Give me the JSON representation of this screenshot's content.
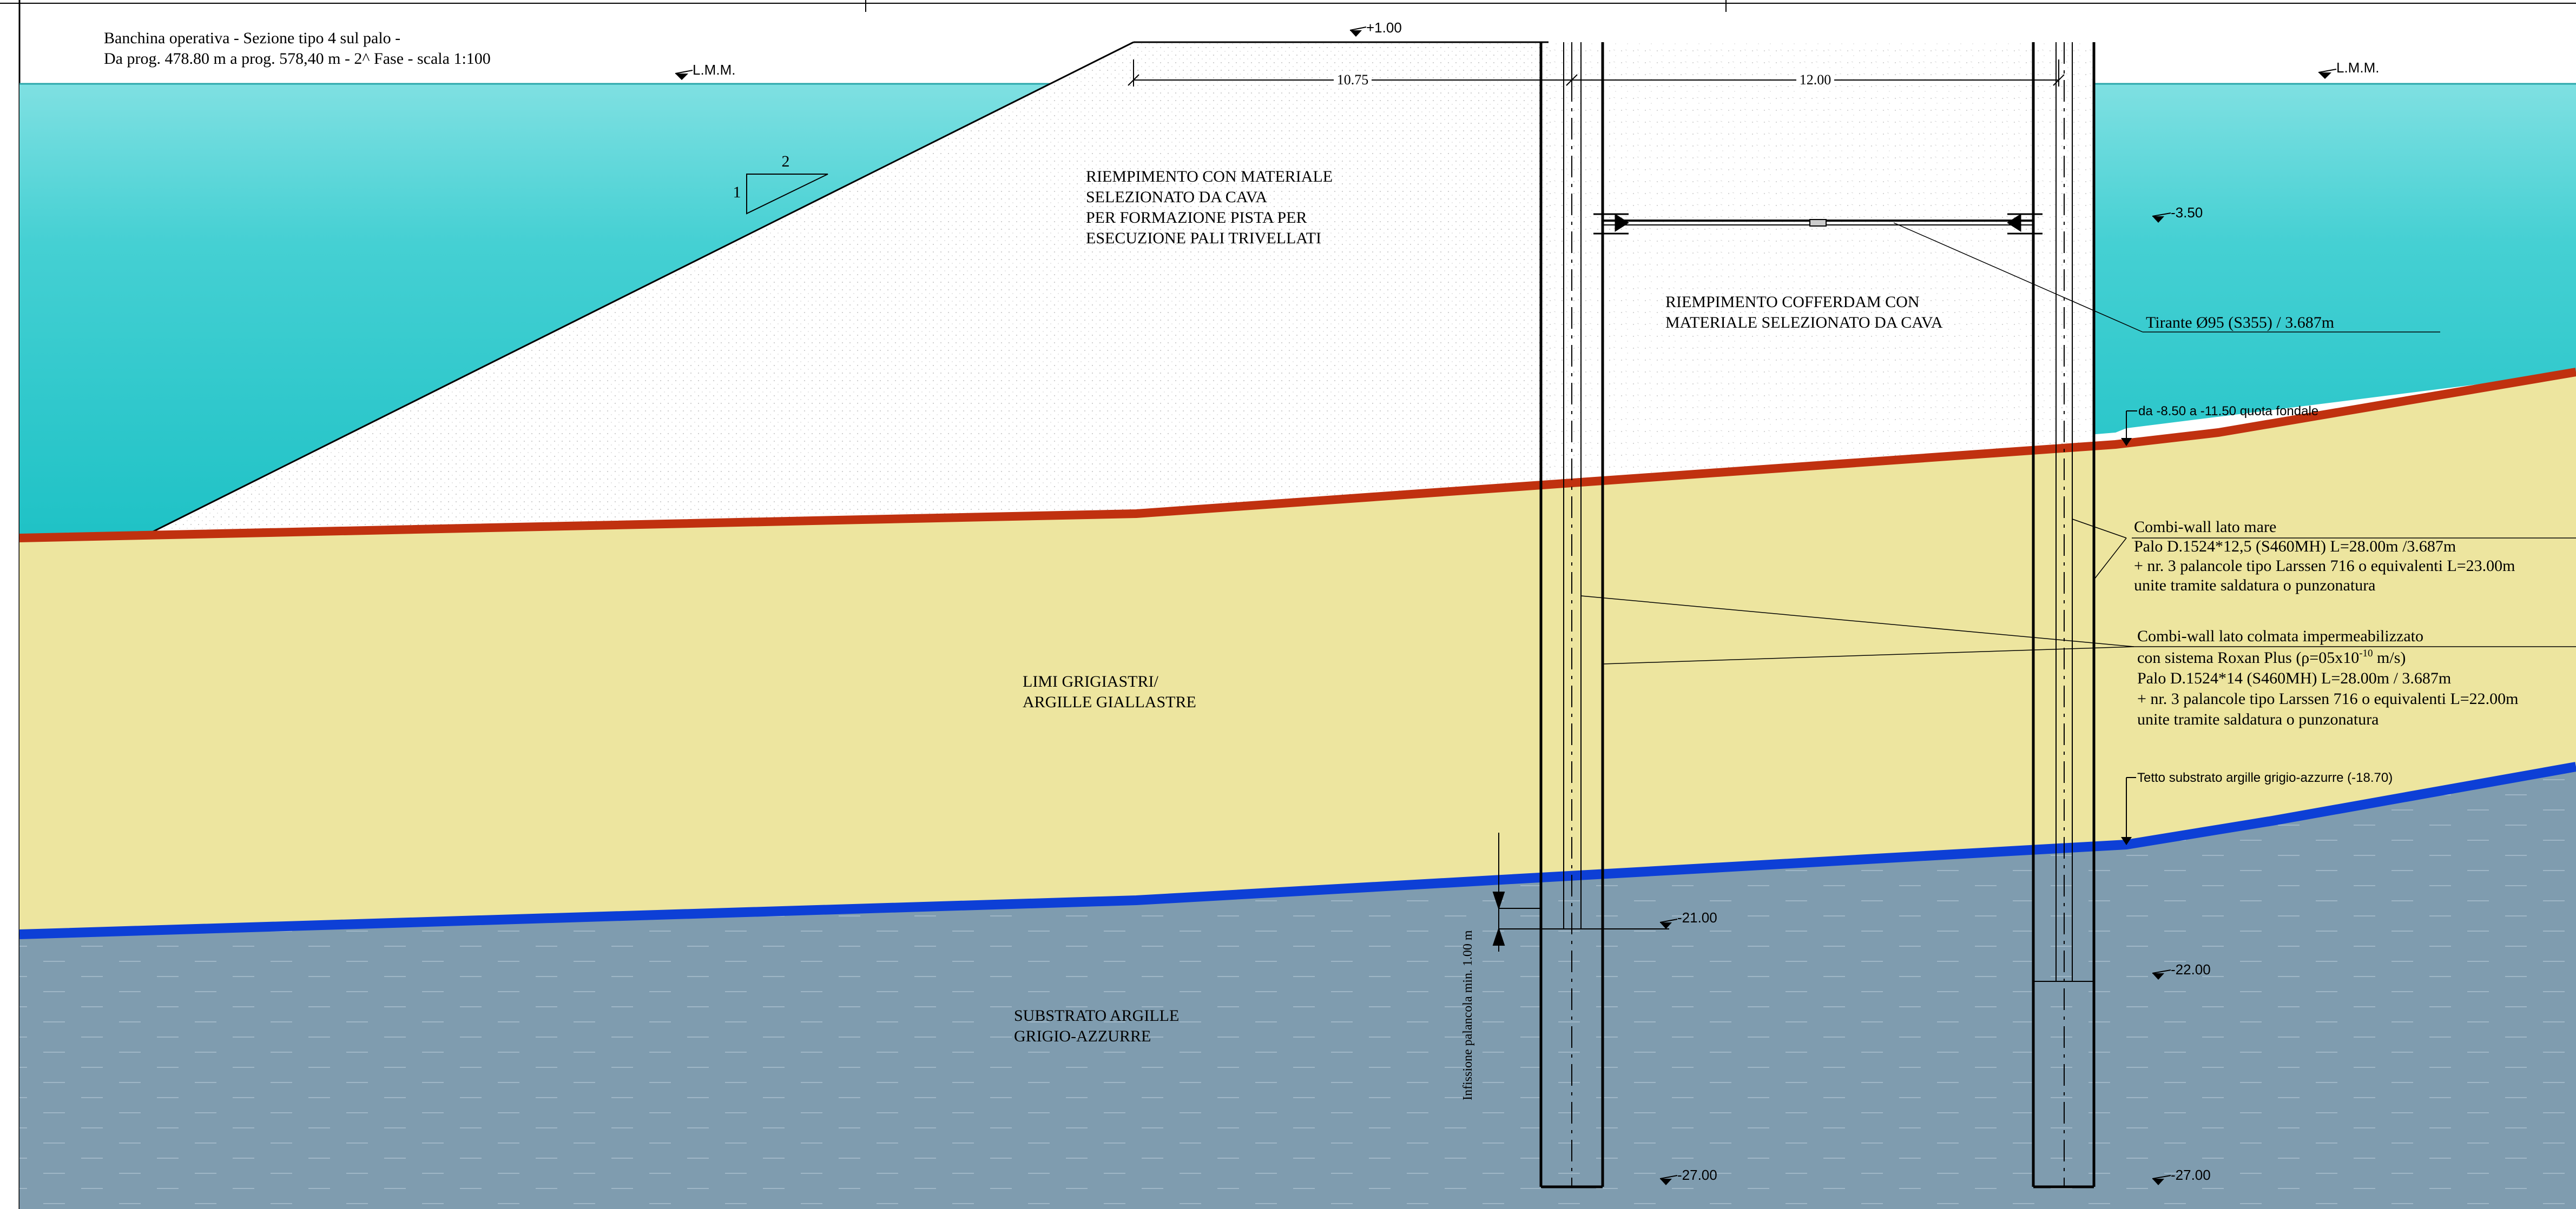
{
  "title": {
    "line1": "Banchina operativa - Sezione tipo 4 sul palo -",
    "line2": "Da prog. 478.80 m a prog. 578,40 m - 2^ Fase - scala 1:100"
  },
  "water_level": {
    "left": "L.M.M.",
    "right": "L.M.M."
  },
  "elevations": {
    "top": "+1.00",
    "tie_rod": "-3.50",
    "cofferdam_left_toe": "-21.00",
    "sheet_right_toe": "-22.00",
    "pile_left_toe": "-27.00",
    "pile_right_toe": "-27.00"
  },
  "dimensions": {
    "left_width": "10.75",
    "right_width": "12.00",
    "embedment": "Infissione palancola min. 1.00 m"
  },
  "slope": {
    "v": "1",
    "h": "2"
  },
  "zones": {
    "fill_embankment": [
      "RIEMPIMENTO CON MATERIALE",
      "SELEZIONATO DA CAVA",
      "PER FORMAZIONE PISTA PER",
      "ESECUZIONE PALI TRIVELLATI"
    ],
    "fill_cofferdam": [
      "RIEMPIMENTO COFFERDAM CON",
      "MATERIALE SELEZIONATO DA CAVA"
    ],
    "silt": [
      "LIMI GRIGIASTRI/",
      "ARGILLE GIALLASTRE"
    ],
    "substrate": [
      "SUBSTRATO ARGILLE",
      "GRIGIO-AZZURRE"
    ]
  },
  "callouts": {
    "tie_rod": "Tirante Ø95 (S355) / 3.687m",
    "seabed": "da -8.50 a -11.50 quota fondale",
    "substrate_top": "Tetto substrato argille grigio-azzurre (-18.70)",
    "combi_sea": [
      "Combi-wall lato mare",
      "Palo D.1524*12,5 (S460MH) L=28.00m /3.687m",
      "+ nr. 3 palancole tipo Larssen 716 o equivalenti L=23.00m",
      "unite tramite saldatura o punzonatura"
    ],
    "combi_land_title": "Combi-wall lato colmata impermeabilizzato",
    "combi_land_system_pre": "con sistema Roxan Plus (ρ=05x10",
    "combi_land_system_exp": "-10",
    "combi_land_system_post": " m/s)",
    "combi_land": [
      "Palo D.1524*14 (S460MH) L=28.00m / 3.687m",
      "+ nr. 3 palancole tipo Larssen 716 o equivalenti L=22.00m",
      "unite tramite saldatura o punzonatura"
    ]
  },
  "colors": {
    "water": "#2bc7cb",
    "water_light": "#82e0e2",
    "fill": "#ffffff",
    "silt": "#ede59f",
    "substrate": "#7f9caf",
    "seabed_line": "#c0310f",
    "substrate_line": "#0d3fd6"
  }
}
